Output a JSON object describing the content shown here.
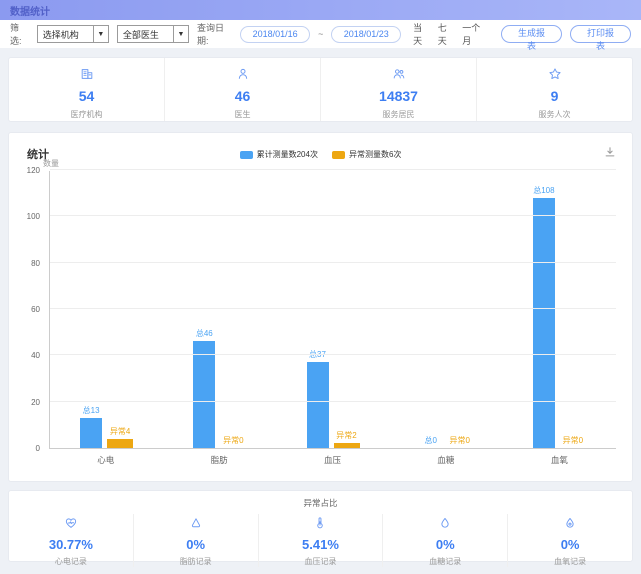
{
  "header": {
    "title": "数据统计"
  },
  "filters": {
    "label": "筛选:",
    "org_select": "选择机构",
    "doctor_select": "全部医生",
    "date_label": "查询日期:",
    "date_from": "2018/01/16",
    "date_separator": "~",
    "date_to": "2018/01/23",
    "quick_ranges": [
      "当天",
      "七天",
      "一个月"
    ],
    "generate_button": "生成报表",
    "print_button": "打印报表"
  },
  "stats": {
    "cards": [
      {
        "icon": "hospital-icon",
        "value": "54",
        "label": "医疗机构"
      },
      {
        "icon": "doctor-icon",
        "value": "46",
        "label": "医生"
      },
      {
        "icon": "residents-icon",
        "value": "14837",
        "label": "服务居民"
      },
      {
        "icon": "star-icon",
        "value": "9",
        "label": "服务人次"
      }
    ]
  },
  "chart_data": {
    "type": "bar",
    "title": "统计",
    "ylabel": "数量",
    "xlabel": "",
    "ylim": [
      0,
      120
    ],
    "y_ticks": [
      0,
      20,
      40,
      60,
      80,
      100,
      120
    ],
    "grid": true,
    "legend_position": "top-center",
    "legend": [
      "累计测量数204次",
      "异常测量数6次"
    ],
    "categories": [
      "心电",
      "脂肪",
      "血压",
      "血糖",
      "血氧"
    ],
    "series": [
      {
        "name": "累计测量数204次",
        "color": "#4aa3f3",
        "label_prefix": "总",
        "values": [
          13,
          46,
          37,
          0,
          108
        ],
        "labels": [
          "总13",
          "总46",
          "总37",
          "总0",
          "总108"
        ]
      },
      {
        "name": "异常测量数6次",
        "color": "#eda712",
        "label_prefix": "异常",
        "values": [
          4,
          0,
          2,
          0,
          0
        ],
        "labels": [
          "异常4",
          "异常0",
          "异常2",
          "异常0",
          "异常0"
        ]
      }
    ],
    "toolbox": {
      "save_image_icon": "download-icon"
    }
  },
  "abnormal": {
    "title": "异常占比",
    "cells": [
      {
        "icon": "heart-icon",
        "value": "30.77%",
        "label": "心电记录"
      },
      {
        "icon": "fat-icon",
        "value": "0%",
        "label": "脂肪记录"
      },
      {
        "icon": "thermometer-icon",
        "value": "5.41%",
        "label": "血压记录"
      },
      {
        "icon": "blood-drop-icon",
        "value": "0%",
        "label": "血糖记录"
      },
      {
        "icon": "oxygen-drop-icon",
        "value": "0%",
        "label": "血氧记录"
      }
    ]
  },
  "colors": {
    "accent": "#3d7ef2",
    "bar_total": "#4aa3f3",
    "bar_abnormal": "#eda712",
    "header_bg": "#8c9cf0"
  }
}
